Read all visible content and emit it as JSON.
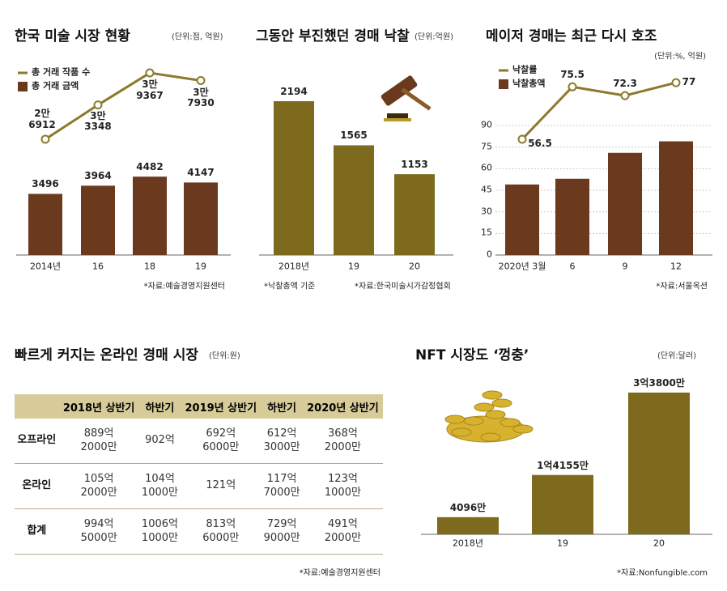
{
  "chart_data": [
    {
      "type": "combo",
      "title": "한국 미술 시장 현황",
      "subtitle": "(단위:점, 억원)",
      "legend": "upper left",
      "categories": [
        "2014년",
        "16",
        "18",
        "19"
      ],
      "series": [
        {
          "name": "총 거래 작품 수",
          "type": "line",
          "color": "#8c7a2a",
          "values": [
            26912,
            33348,
            39367,
            37930
          ],
          "value_labels": [
            "2만\n6912",
            "3만\n3348",
            "3만\n9367",
            "3만\n7930"
          ]
        },
        {
          "name": "총 거래 금액",
          "type": "bar",
          "color": "#6b3a1e",
          "values": [
            3496,
            3964,
            4482,
            4147
          ]
        }
      ],
      "annotations": [
        "*자료:예술경영지원센터"
      ]
    },
    {
      "type": "combo",
      "title": "그동안 부진했던 경매 낙찰",
      "subtitle": "(단위:억원)",
      "categories": [
        "2018년",
        "19",
        "20"
      ],
      "series": [
        {
          "type": "bar",
          "color": "#7d6a1c",
          "values": [
            2194,
            1565,
            1153
          ]
        }
      ],
      "annotations": [
        "*낙찰총액 기준",
        "*자료:한국미술시가감정협회"
      ]
    },
    {
      "type": "combo",
      "title": "메이저 경매는 최근 다시 호조",
      "subtitle": "(단위:%, 억원)",
      "legend": "upper left",
      "categories": [
        "2020년 3월",
        "6",
        "9",
        "12"
      ],
      "ylim": [
        0,
        90
      ],
      "yticks": [
        0,
        15,
        30,
        45,
        60,
        75,
        90
      ],
      "grid": true,
      "series": [
        {
          "name": "낙찰률",
          "type": "line",
          "color": "#8c7a2a",
          "values": [
            56.5,
            75.5,
            72.3,
            77
          ]
        },
        {
          "name": "낙찰총액",
          "type": "bar",
          "color": "#6b3a1e",
          "values": [
            49,
            53,
            71,
            79
          ]
        }
      ],
      "annotations": [
        "*자료:서울옥션"
      ]
    },
    {
      "type": "combo",
      "title": "NFT 시장도 ‘껑충’",
      "subtitle": "(단위:달러)",
      "categories": [
        "2018년",
        "19",
        "20"
      ],
      "series": [
        {
          "type": "bar",
          "color": "#7d6a1c",
          "values": [
            40960000,
            141550000,
            338000000
          ],
          "value_labels": [
            "4096만",
            "1억4155만",
            "3억3800만"
          ]
        }
      ],
      "annotations": [
        "*자료:Nonfungible.com"
      ]
    }
  ],
  "table": {
    "title": "빠르게 커지는 온라인 경매 시장",
    "subtitle": "(단위:원)",
    "header": [
      "2018년 상반기",
      "하반기",
      "2019년 상반기",
      "하반기",
      "2020년 상반기"
    ],
    "rows": [
      [
        "오프라인",
        "889억\n2000만",
        "902억",
        "692억\n6000만",
        "612억\n3000만",
        "368억\n2000만"
      ],
      [
        "온라인",
        "105억\n2000만",
        "104억\n1000만",
        "121억",
        "117억\n7000만",
        "123억\n1000만"
      ],
      [
        "합계",
        "994억\n5000만",
        "1006억\n1000만",
        "813억\n6000만",
        "729억\n9000만",
        "491억\n2000만"
      ]
    ],
    "source": "*자료:예술경영지원센터"
  }
}
